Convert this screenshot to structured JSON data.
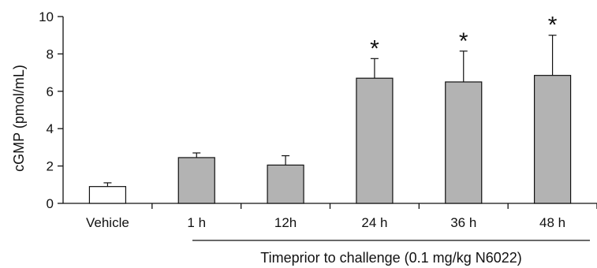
{
  "chart_data": {
    "type": "bar",
    "categories": [
      "Vehicle",
      "1 h",
      "12h",
      "24 h",
      "36 h",
      "48 h"
    ],
    "values": [
      0.9,
      2.45,
      2.05,
      6.7,
      6.5,
      6.85
    ],
    "errors": [
      0.2,
      0.25,
      0.5,
      1.05,
      1.65,
      2.15
    ],
    "significant": [
      false,
      false,
      false,
      true,
      true,
      true
    ],
    "significance_marker": "*",
    "bar_colors": [
      "#ffffff",
      "#b3b3b3",
      "#b3b3b3",
      "#b3b3b3",
      "#b3b3b3",
      "#b3b3b3"
    ],
    "ylabel": "cGMP (pmol/mL)",
    "xlabel": "Timeprior to challenge (0.1 mg/kg N6022)",
    "ylim": [
      0,
      10
    ],
    "yticks": [
      0,
      2,
      4,
      6,
      8,
      10
    ],
    "grid": false,
    "legend": false
  }
}
